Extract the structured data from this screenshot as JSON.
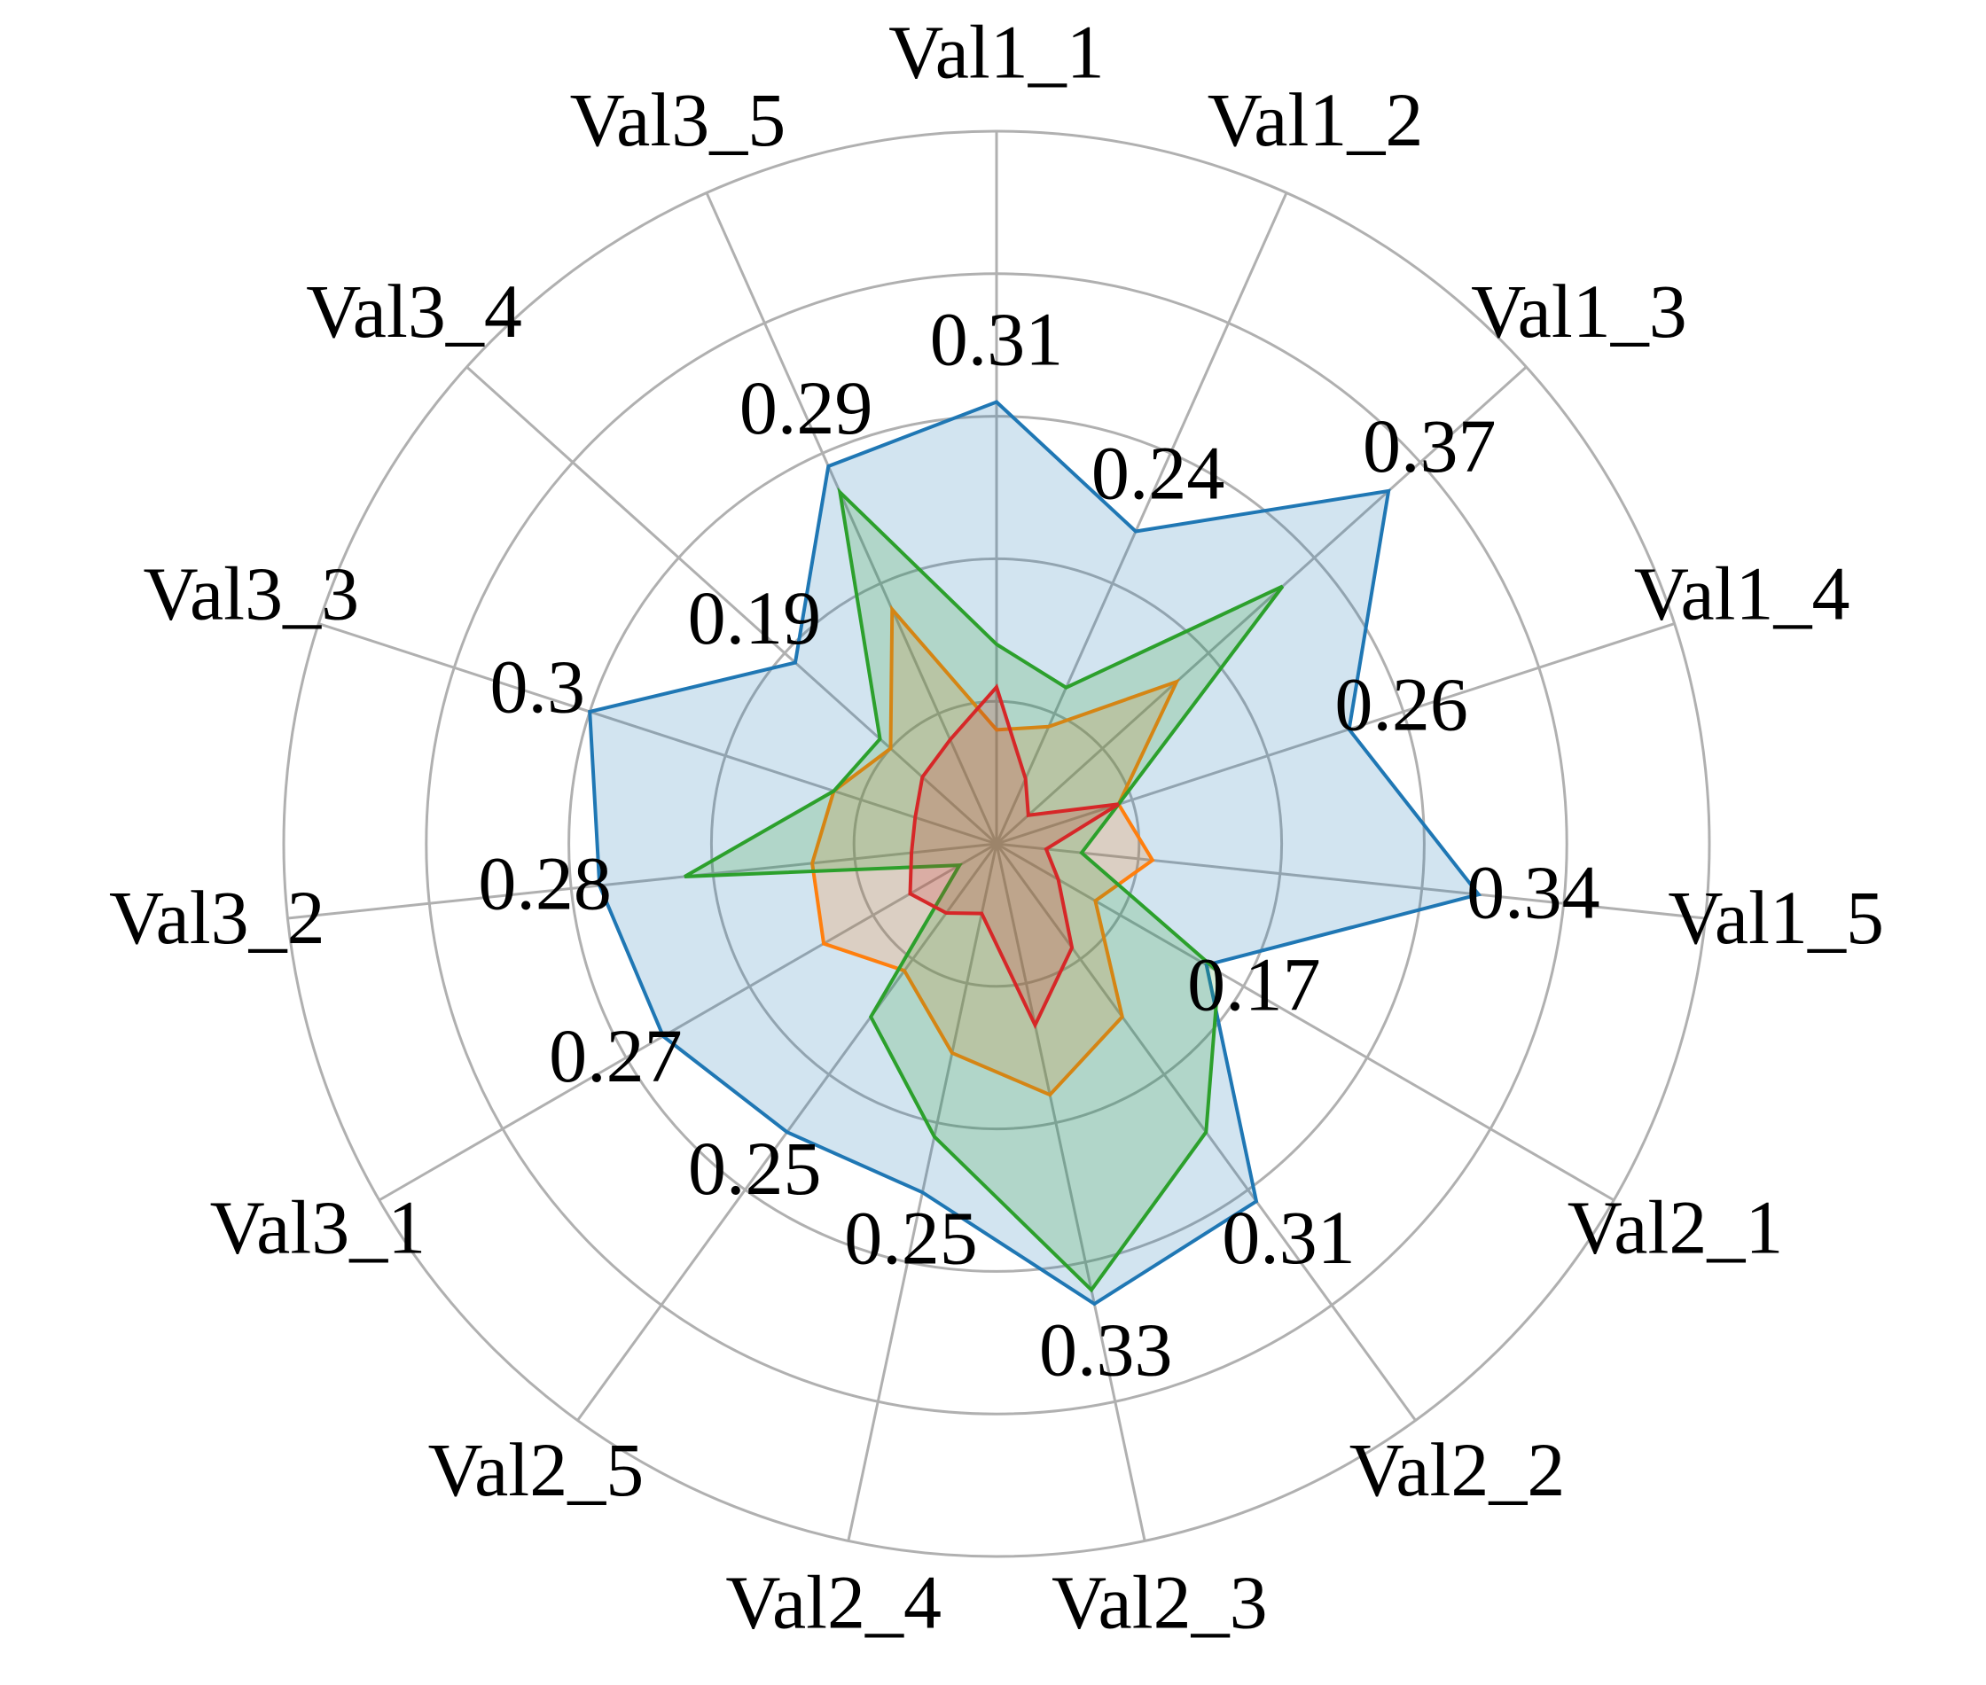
{
  "chart_data": {
    "type": "radar",
    "categories": [
      "Val1_1",
      "Val1_2",
      "Val1_3",
      "Val1_4",
      "Val1_5",
      "Val2_1",
      "Val2_2",
      "Val2_3",
      "Val2_4",
      "Val2_5",
      "Val3_1",
      "Val3_2",
      "Val3_3",
      "Val3_4",
      "Val3_5"
    ],
    "series": [
      {
        "color": "#1f77b4",
        "data_labels": true,
        "values": [
          0.31,
          0.24,
          0.37,
          0.26,
          0.34,
          0.17,
          0.31,
          0.33,
          0.25,
          0.25,
          0.27,
          0.28,
          0.3,
          0.19,
          0.29
        ]
      },
      {
        "color": "#ff7f0e",
        "data_labels": false,
        "values": [
          0.08,
          0.09,
          0.17,
          0.09,
          0.11,
          0.08,
          0.15,
          0.18,
          0.15,
          0.11,
          0.14,
          0.13,
          0.12,
          0.1,
          0.18
        ]
      },
      {
        "color": "#2ca02c",
        "data_labels": false,
        "values": [
          0.14,
          0.12,
          0.27,
          0.09,
          0.06,
          0.18,
          0.25,
          0.32,
          0.21,
          0.15,
          0.03,
          0.22,
          0.12,
          0.11,
          0.27
        ]
      },
      {
        "color": "#d62728",
        "data_labels": false,
        "values": [
          0.11,
          0.05,
          0.03,
          0.09,
          0.035,
          0.05,
          0.09,
          0.13,
          0.05,
          0.06,
          0.07,
          0.06,
          0.06,
          0.07,
          0.08
        ]
      }
    ],
    "ylim": [
      0,
      0.5
    ],
    "yticks": [
      0.1,
      0.2,
      0.3,
      0.4,
      0.5
    ],
    "grid": true
  }
}
